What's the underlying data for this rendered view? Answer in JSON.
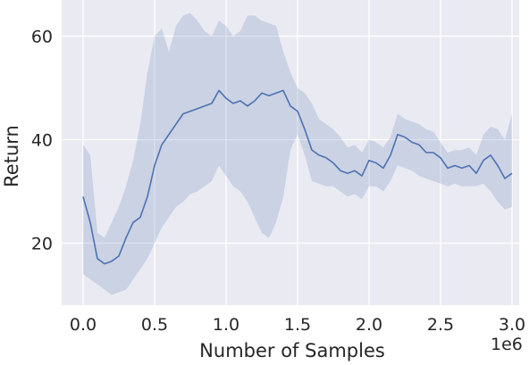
{
  "chart_data": {
    "type": "line",
    "xlabel": "Number of Samples",
    "ylabel": "Return",
    "x_offset_label": "1e6",
    "xlim": [
      -0.15,
      3.05
    ],
    "ylim": [
      8,
      67
    ],
    "x_ticks": [
      0.0,
      0.5,
      1.0,
      1.5,
      2.0,
      2.5,
      3.0
    ],
    "x_tick_labels": [
      "0.0",
      "0.5",
      "1.0",
      "1.5",
      "2.0",
      "2.5",
      "3.0"
    ],
    "y_ticks": [
      20,
      40,
      60
    ],
    "y_tick_labels": [
      "20",
      "40",
      "60"
    ],
    "grid": true,
    "series": [
      {
        "x": [
          0.0,
          0.05,
          0.1,
          0.15,
          0.2,
          0.25,
          0.3,
          0.35,
          0.4,
          0.45,
          0.5,
          0.55,
          0.6,
          0.65,
          0.7,
          0.75,
          0.8,
          0.85,
          0.9,
          0.95,
          1.0,
          1.05,
          1.1,
          1.15,
          1.2,
          1.25,
          1.3,
          1.35,
          1.4,
          1.45,
          1.5,
          1.55,
          1.6,
          1.65,
          1.7,
          1.75,
          1.8,
          1.85,
          1.9,
          1.95,
          2.0,
          2.05,
          2.1,
          2.15,
          2.2,
          2.25,
          2.3,
          2.35,
          2.4,
          2.45,
          2.5,
          2.55,
          2.6,
          2.65,
          2.7,
          2.75,
          2.8,
          2.85,
          2.9,
          2.95,
          3.0
        ],
        "y": [
          29,
          24,
          17,
          16,
          16.5,
          17.5,
          21,
          24,
          25,
          29,
          35,
          39,
          41,
          43,
          45,
          45.5,
          46,
          46.5,
          47,
          49.5,
          48,
          47,
          47.5,
          46.5,
          47.5,
          49,
          48.5,
          49,
          49.5,
          46.5,
          45.5,
          42,
          38,
          37,
          36.5,
          35.5,
          34,
          33.5,
          34,
          33,
          36,
          35.5,
          34.5,
          37,
          41,
          40.5,
          39.5,
          39,
          37.5,
          37.5,
          36.5,
          34.5,
          35,
          34.5,
          35,
          33.5,
          36,
          37,
          35,
          32.5,
          33.5
        ],
        "lower": [
          14,
          13,
          12,
          11,
          10,
          10.5,
          11,
          13,
          15,
          17,
          20,
          23,
          25,
          27,
          28,
          29.5,
          30,
          31,
          32,
          35,
          33,
          31,
          30,
          28,
          25,
          22,
          21,
          24,
          29,
          38,
          41,
          37,
          32,
          31.5,
          31,
          31,
          30,
          29,
          29.5,
          28.5,
          31,
          31,
          30,
          32,
          35,
          34.5,
          34,
          33,
          32.5,
          32,
          31.5,
          31,
          31.5,
          31,
          31,
          31,
          31.5,
          30,
          28,
          26.5,
          27
        ],
        "upper": [
          39,
          37,
          22,
          21,
          24,
          27,
          31,
          36,
          43,
          53,
          60,
          61.5,
          57,
          62,
          64,
          64.5,
          63,
          61,
          60,
          63,
          62,
          60,
          61,
          64,
          64,
          63,
          62.5,
          62,
          57,
          53,
          50,
          49,
          47,
          44,
          43,
          42,
          40.5,
          38.5,
          39,
          37.5,
          40,
          39.5,
          38.5,
          40.5,
          45,
          44,
          43.5,
          43,
          42,
          41.5,
          39.5,
          37.5,
          38,
          38,
          38.5,
          37,
          41,
          42.5,
          42,
          40,
          45
        ]
      }
    ],
    "colors": {
      "line": "#4c72b0",
      "band": "#4c72b0",
      "plot_bg": "#eaeaf2",
      "grid": "#ffffff"
    }
  }
}
